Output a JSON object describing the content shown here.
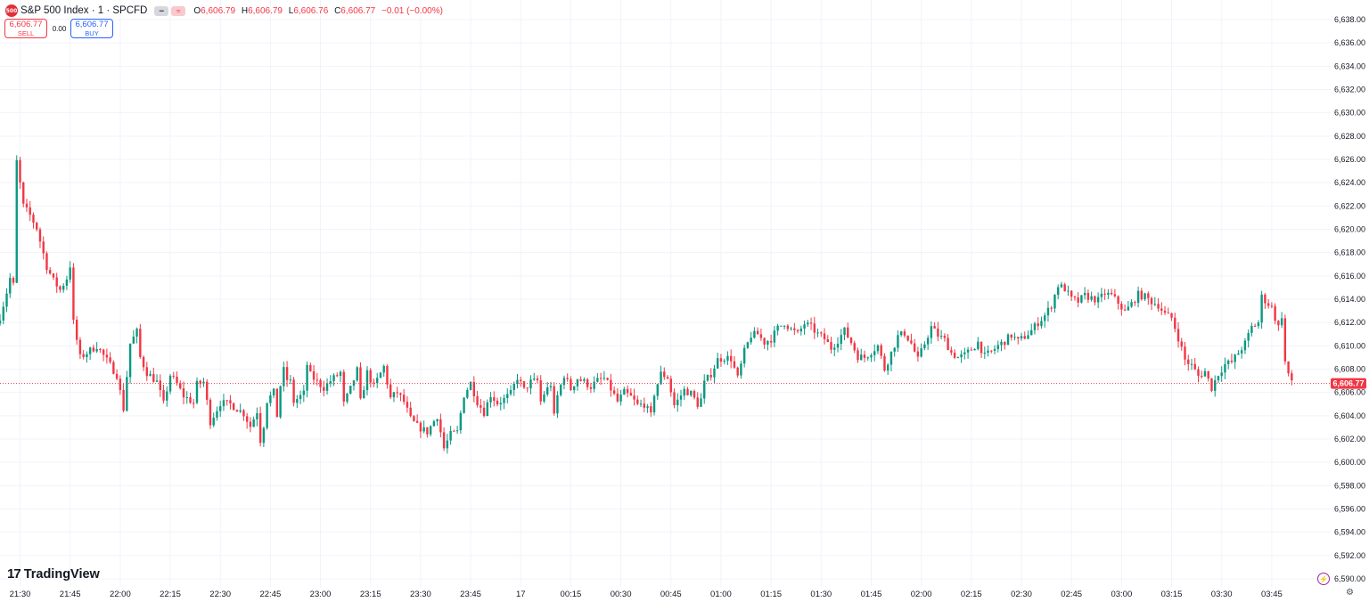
{
  "header": {
    "symbol": "S&P 500 Index · 1 · SPCFD",
    "logo_text": "500",
    "ohlc": {
      "o_label": "O",
      "o": "6,606.79",
      "h_label": "H",
      "h": "6,606.79",
      "l_label": "L",
      "l": "6,606.76",
      "c_label": "C",
      "c": "6,606.77",
      "change": "−0.01 (−0.00%)"
    }
  },
  "trade": {
    "sell_price": "6,606.77",
    "sell_label": "SELL",
    "spread": "0.00",
    "buy_price": "6,606.77",
    "buy_label": "BUY"
  },
  "branding": {
    "name": "TradingView",
    "mark": "17"
  },
  "colors": {
    "up": "#089981",
    "down": "#f23645",
    "grid": "#f0f3fa",
    "axis_text": "#131722"
  },
  "chart_data": {
    "type": "candlestick",
    "ylim": [
      6590,
      6638
    ],
    "y_ticks": [
      6590,
      6592,
      6594,
      6596,
      6598,
      6600,
      6602,
      6604,
      6606,
      6608,
      6610,
      6612,
      6614,
      6616,
      6618,
      6620,
      6622,
      6624,
      6626,
      6628,
      6630,
      6632,
      6634,
      6636,
      6638
    ],
    "y_tick_labels": [
      "6,590.00",
      "6,592.00",
      "6,594.00",
      "6,596.00",
      "6,598.00",
      "6,600.00",
      "6,602.00",
      "6,604.00",
      "6,606.00",
      "6,608.00",
      "6,610.00",
      "6,612.00",
      "6,614.00",
      "6,616.00",
      "6,618.00",
      "6,620.00",
      "6,622.00",
      "6,624.00",
      "6,626.00",
      "6,628.00",
      "6,630.00",
      "6,632.00",
      "6,634.00",
      "6,636.00",
      "6,638.00"
    ],
    "x_tick_labels": [
      "21:30",
      "21:45",
      "22:00",
      "22:15",
      "22:30",
      "22:45",
      "23:00",
      "23:15",
      "23:30",
      "23:45",
      "17",
      "00:15",
      "00:30",
      "00:45",
      "01:00",
      "01:15",
      "01:30",
      "01:45",
      "02:00",
      "02:15",
      "02:30",
      "02:45",
      "03:00",
      "03:15",
      "03:30",
      "03:45"
    ],
    "x_tick_minutes": [
      15,
      30,
      45,
      60,
      75,
      90,
      105,
      120,
      135,
      150,
      165,
      180,
      195,
      210,
      225,
      240,
      255,
      270,
      285,
      300,
      315,
      330,
      345,
      360,
      375,
      390
    ],
    "x_minute_start": 9,
    "last_price": 6606.77,
    "last_price_label": "6,606.77",
    "path": [
      [
        9,
        6612.5
      ],
      [
        11,
        6614.6
      ],
      [
        12,
        6615.8
      ],
      [
        13,
        6615.2
      ],
      [
        14,
        6625.8
      ],
      [
        16,
        6622.0
      ],
      [
        18,
        6621.2
      ],
      [
        20,
        6620.1
      ],
      [
        23,
        6616.8
      ],
      [
        25,
        6615.6
      ],
      [
        27,
        6614.8
      ],
      [
        29,
        6615.8
      ],
      [
        30,
        6616.9
      ],
      [
        31,
        6612.0
      ],
      [
        33,
        6609.0
      ],
      [
        38,
        6610.0
      ],
      [
        44,
        6607.5
      ],
      [
        46,
        6604.6
      ],
      [
        48,
        6610.2
      ],
      [
        50,
        6611.2
      ],
      [
        51,
        6609.0
      ],
      [
        53,
        6607.7
      ],
      [
        56,
        6606.9
      ],
      [
        58,
        6605.0
      ],
      [
        60,
        6607.5
      ],
      [
        62,
        6606.7
      ],
      [
        64,
        6605.7
      ],
      [
        67,
        6605.1
      ],
      [
        68,
        6606.7
      ],
      [
        70,
        6606.9
      ],
      [
        72,
        6603.5
      ],
      [
        75,
        6605.1
      ],
      [
        78,
        6605.0
      ],
      [
        82,
        6604.2
      ],
      [
        84,
        6603.1
      ],
      [
        86,
        6604.4
      ],
      [
        87,
        6601.9
      ],
      [
        88,
        6603.2
      ],
      [
        89,
        6605.3
      ],
      [
        91,
        6606.0
      ],
      [
        92,
        6604.0
      ],
      [
        93,
        6606.6
      ],
      [
        94,
        6607.9
      ],
      [
        95,
        6607.1
      ],
      [
        96,
        6606.9
      ],
      [
        97,
        6605.2
      ],
      [
        100,
        6605.9
      ],
      [
        101,
        6608.4
      ],
      [
        102,
        6607.5
      ],
      [
        104,
        6606.9
      ],
      [
        106,
        6606.4
      ],
      [
        108,
        6607.0
      ],
      [
        111,
        6607.7
      ],
      [
        112,
        6605.0
      ],
      [
        114,
        6606.3
      ],
      [
        116,
        6607.9
      ],
      [
        117,
        6605.2
      ],
      [
        119,
        6607.7
      ],
      [
        121,
        6606.5
      ],
      [
        124,
        6608.2
      ],
      [
        126,
        6605.5
      ],
      [
        128,
        6606.0
      ],
      [
        130,
        6605.2
      ],
      [
        132,
        6603.7
      ],
      [
        134,
        6603.1
      ],
      [
        137,
        6602.6
      ],
      [
        140,
        6604.0
      ],
      [
        142,
        6601.2
      ],
      [
        144,
        6602.4
      ],
      [
        146,
        6602.6
      ],
      [
        148,
        6605.8
      ],
      [
        150,
        6606.8
      ],
      [
        152,
        6605.2
      ],
      [
        154,
        6604.3
      ],
      [
        156,
        6605.8
      ],
      [
        158,
        6605.1
      ],
      [
        160,
        6605.4
      ],
      [
        162,
        6605.9
      ],
      [
        164,
        6607.3
      ],
      [
        166,
        6606.2
      ],
      [
        168,
        6606.9
      ],
      [
        170,
        6607.0
      ],
      [
        171,
        6605.2
      ],
      [
        172,
        6605.9
      ],
      [
        174,
        6606.7
      ],
      [
        175,
        6603.9
      ],
      [
        176,
        6605.7
      ],
      [
        178,
        6607.5
      ],
      [
        180,
        6606.3
      ],
      [
        182,
        6607.2
      ],
      [
        184,
        6606.9
      ],
      [
        186,
        6606.5
      ],
      [
        188,
        6607.0
      ],
      [
        190,
        6607.2
      ],
      [
        192,
        6606.3
      ],
      [
        194,
        6605.2
      ],
      [
        196,
        6606.0
      ],
      [
        198,
        6605.6
      ],
      [
        200,
        6604.9
      ],
      [
        202,
        6605.0
      ],
      [
        204,
        6604.0
      ],
      [
        205,
        6605.9
      ],
      [
        207,
        6607.6
      ],
      [
        209,
        6607.3
      ],
      [
        211,
        6604.9
      ],
      [
        212,
        6605.3
      ],
      [
        214,
        6606.2
      ],
      [
        216,
        6605.9
      ],
      [
        218,
        6605.0
      ],
      [
        219,
        6605.4
      ],
      [
        220,
        6606.8
      ],
      [
        222,
        6607.6
      ],
      [
        224,
        6608.8
      ],
      [
        226,
        6609.0
      ],
      [
        228,
        6608.9
      ],
      [
        230,
        6607.2
      ],
      [
        232,
        6609.5
      ],
      [
        234,
        6610.9
      ],
      [
        236,
        6611.0
      ],
      [
        238,
        6610.3
      ],
      [
        240,
        6610.6
      ],
      [
        242,
        6611.5
      ],
      [
        244,
        6612.0
      ],
      [
        246,
        6611.4
      ],
      [
        248,
        6611.0
      ],
      [
        250,
        6611.9
      ],
      [
        252,
        6611.6
      ],
      [
        254,
        6611.0
      ],
      [
        256,
        6610.6
      ],
      [
        258,
        6609.8
      ],
      [
        260,
        6610.5
      ],
      [
        262,
        6611.3
      ],
      [
        264,
        6610.3
      ],
      [
        266,
        6609.1
      ],
      [
        268,
        6609.0
      ],
      [
        270,
        6609.5
      ],
      [
        272,
        6610.0
      ],
      [
        274,
        6608.0
      ],
      [
        276,
        6609.4
      ],
      [
        278,
        6610.8
      ],
      [
        280,
        6611.1
      ],
      [
        282,
        6610.2
      ],
      [
        284,
        6608.8
      ],
      [
        286,
        6610.2
      ],
      [
        288,
        6611.6
      ],
      [
        290,
        6610.9
      ],
      [
        292,
        6610.5
      ],
      [
        294,
        6609.4
      ],
      [
        296,
        6609.0
      ],
      [
        298,
        6609.2
      ],
      [
        300,
        6609.7
      ],
      [
        302,
        6610.3
      ],
      [
        304,
        6609.1
      ],
      [
        306,
        6609.5
      ],
      [
        308,
        6610.0
      ],
      [
        310,
        6610.4
      ],
      [
        312,
        6610.9
      ],
      [
        314,
        6610.4
      ],
      [
        316,
        6610.8
      ],
      [
        318,
        6611.3
      ],
      [
        320,
        6612.0
      ],
      [
        322,
        6612.6
      ],
      [
        324,
        6613.5
      ],
      [
        326,
        6615.2
      ],
      [
        328,
        6614.9
      ],
      [
        330,
        6614.0
      ],
      [
        332,
        6613.8
      ],
      [
        334,
        6614.3
      ],
      [
        336,
        6614.1
      ],
      [
        338,
        6613.9
      ],
      [
        340,
        6614.5
      ],
      [
        342,
        6614.3
      ],
      [
        344,
        6613.7
      ],
      [
        346,
        6612.9
      ],
      [
        348,
        6613.6
      ],
      [
        350,
        6614.4
      ],
      [
        352,
        6614.2
      ],
      [
        354,
        6613.8
      ],
      [
        356,
        6613.5
      ],
      [
        358,
        6612.7
      ],
      [
        360,
        6612.4
      ],
      [
        362,
        6610.7
      ],
      [
        364,
        6608.8
      ],
      [
        366,
        6608.3
      ],
      [
        368,
        6607.4
      ],
      [
        370,
        6607.8
      ],
      [
        372,
        6606.4
      ],
      [
        374,
        6607.6
      ],
      [
        376,
        6608.4
      ],
      [
        378,
        6608.6
      ],
      [
        380,
        6609.4
      ],
      [
        382,
        6610.2
      ],
      [
        384,
        6611.6
      ],
      [
        386,
        6612.0
      ],
      [
        387,
        6614.2
      ],
      [
        388,
        6613.9
      ],
      [
        390,
        6613.3
      ],
      [
        391,
        6612.4
      ],
      [
        392,
        6611.6
      ],
      [
        393,
        6612.6
      ],
      [
        394,
        6608.6
      ],
      [
        395,
        6607.6
      ],
      [
        396,
        6606.77
      ]
    ]
  }
}
